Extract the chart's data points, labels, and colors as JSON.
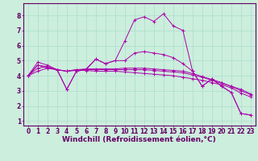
{
  "xlabel": "Windchill (Refroidissement éolien,°C)",
  "background_color": "#cceedd",
  "line_color": "#aa00aa",
  "xlim": [
    -0.5,
    23.5
  ],
  "ylim": [
    0.7,
    8.8
  ],
  "series": [
    [
      4.0,
      4.9,
      4.7,
      4.4,
      3.1,
      4.3,
      4.4,
      5.1,
      4.8,
      5.0,
      6.3,
      7.7,
      7.9,
      7.6,
      8.1,
      7.3,
      7.0,
      4.3,
      3.3,
      3.8,
      3.3,
      2.9,
      1.5,
      1.4
    ],
    [
      4.0,
      4.7,
      4.6,
      4.4,
      4.3,
      4.4,
      4.35,
      4.3,
      4.3,
      4.3,
      4.25,
      4.2,
      4.15,
      4.1,
      4.05,
      4.0,
      3.9,
      3.8,
      3.7,
      3.55,
      3.4,
      3.2,
      2.85,
      2.6
    ],
    [
      4.0,
      4.3,
      4.5,
      4.4,
      4.3,
      4.35,
      4.4,
      4.4,
      4.4,
      4.4,
      4.4,
      4.4,
      4.4,
      4.35,
      4.3,
      4.25,
      4.2,
      4.05,
      3.9,
      3.7,
      3.5,
      3.3,
      3.1,
      2.8
    ],
    [
      4.0,
      4.5,
      4.6,
      4.4,
      4.3,
      4.4,
      4.45,
      4.45,
      4.45,
      4.45,
      4.5,
      4.5,
      4.5,
      4.45,
      4.4,
      4.35,
      4.3,
      4.15,
      3.95,
      3.75,
      3.55,
      3.3,
      3.0,
      2.75
    ],
    [
      4.0,
      4.7,
      4.5,
      4.4,
      3.1,
      4.3,
      4.45,
      5.1,
      4.8,
      5.0,
      5.0,
      5.5,
      5.6,
      5.5,
      5.4,
      5.2,
      4.8,
      4.3,
      3.3,
      3.8,
      3.3,
      2.9,
      1.5,
      1.4
    ]
  ],
  "xticks": [
    0,
    1,
    2,
    3,
    4,
    5,
    6,
    7,
    8,
    9,
    10,
    11,
    12,
    13,
    14,
    15,
    16,
    17,
    18,
    19,
    20,
    21,
    22,
    23
  ],
  "yticks": [
    1,
    2,
    3,
    4,
    5,
    6,
    7,
    8
  ],
  "grid_color": "#aaddcc",
  "tick_fontsize": 5.5,
  "label_fontsize": 6.5
}
